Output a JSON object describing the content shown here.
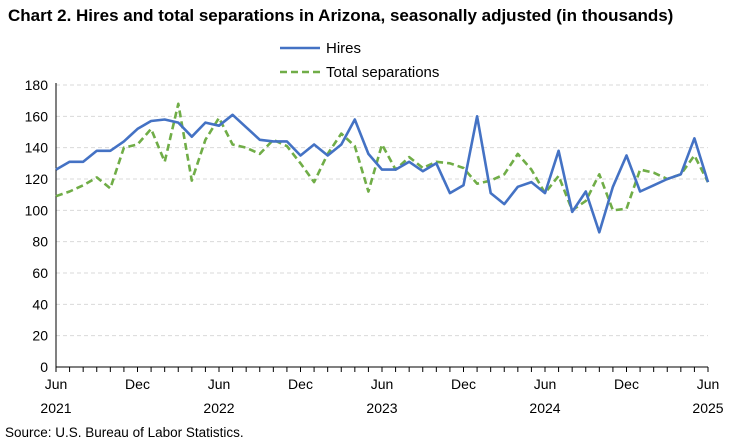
{
  "title": "Chart 2. Hires and total separations in Arizona, seasonally adjusted (in thousands)",
  "source": "Source: U.S. Bureau of Labor Statistics.",
  "chart_data": {
    "type": "line",
    "title": "Chart 2. Hires and total separations in Arizona, seasonally adjusted (in thousands)",
    "xlabel": "",
    "ylabel": "",
    "ylim": [
      0,
      180
    ],
    "yticks": [
      "0",
      "20",
      "40",
      "60",
      "80",
      "100",
      "120",
      "140",
      "160",
      "180"
    ],
    "grid": true,
    "legend_position": "top-center",
    "x_tick_labels": [
      {
        "month": "Jun",
        "year": "2021"
      },
      {
        "month": "Dec",
        "year": ""
      },
      {
        "month": "Jun",
        "year": "2022"
      },
      {
        "month": "Dec",
        "year": ""
      },
      {
        "month": "Jun",
        "year": "2023"
      },
      {
        "month": "Dec",
        "year": ""
      },
      {
        "month": "Jun",
        "year": "2024"
      },
      {
        "month": "Dec",
        "year": ""
      },
      {
        "month": "Jun",
        "year": "2025"
      }
    ],
    "x": [
      "2021-06",
      "2021-07",
      "2021-08",
      "2021-09",
      "2021-10",
      "2021-11",
      "2021-12",
      "2022-01",
      "2022-02",
      "2022-03",
      "2022-04",
      "2022-05",
      "2022-06",
      "2022-07",
      "2022-08",
      "2022-09",
      "2022-10",
      "2022-11",
      "2022-12",
      "2023-01",
      "2023-02",
      "2023-03",
      "2023-04",
      "2023-05",
      "2023-06",
      "2023-07",
      "2023-08",
      "2023-09",
      "2023-10",
      "2023-11",
      "2023-12",
      "2024-01",
      "2024-02",
      "2024-03",
      "2024-04",
      "2024-05",
      "2024-06",
      "2024-07",
      "2024-08",
      "2024-09",
      "2024-10",
      "2024-11",
      "2024-12",
      "2025-01",
      "2025-02",
      "2025-03",
      "2025-04",
      "2025-05",
      "2025-06"
    ],
    "series": [
      {
        "name": "Hires",
        "color": "#4472c4",
        "style": "solid",
        "values": [
          126,
          131,
          131,
          138,
          138,
          144,
          152,
          157,
          158,
          156,
          147,
          156,
          154,
          161,
          153,
          145,
          144,
          144,
          135,
          142,
          135,
          142,
          158,
          136,
          126,
          126,
          131,
          125,
          130,
          111,
          116,
          160,
          111,
          104,
          115,
          118,
          111,
          138,
          99,
          112,
          86,
          115,
          135,
          112,
          116,
          120,
          123,
          146,
          118
        ]
      },
      {
        "name": "Total separations",
        "color": "#70ad47",
        "style": "dashed",
        "values": [
          109,
          112,
          116,
          121,
          114,
          140,
          142,
          152,
          131,
          168,
          119,
          145,
          159,
          142,
          140,
          136,
          145,
          141,
          130,
          118,
          136,
          149,
          141,
          112,
          142,
          126,
          134,
          127,
          131,
          130,
          127,
          117,
          119,
          123,
          136,
          126,
          111,
          122,
          100,
          106,
          123,
          100,
          101,
          126,
          124,
          120,
          123,
          135,
          118
        ]
      }
    ]
  }
}
